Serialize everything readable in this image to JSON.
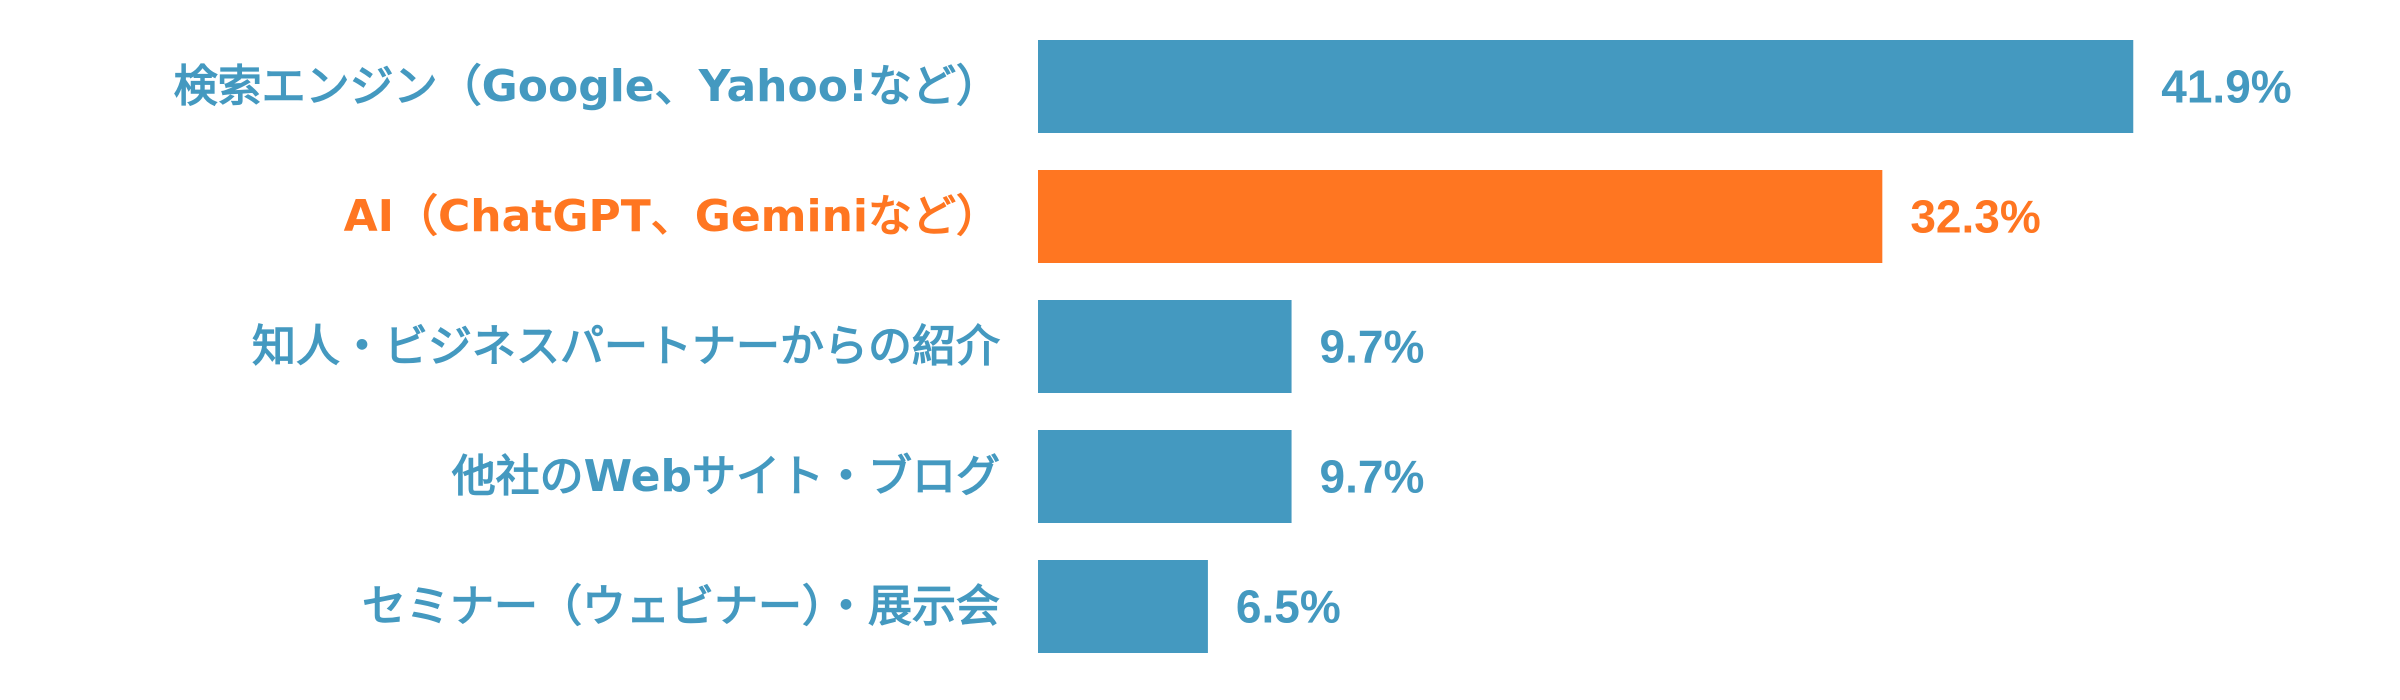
{
  "chart_data": {
    "type": "bar",
    "orientation": "horizontal",
    "categories": [
      "検索エンジン（Google、Yahoo!など）",
      "AI（ChatGPT、Geminiなど）",
      "知人・ビジネスパートナーからの紹介",
      "他社のWebサイト・ブログ",
      "セミナー（ウェビナー）・展示会"
    ],
    "values": [
      41.9,
      32.3,
      9.7,
      9.7,
      6.5
    ],
    "value_labels": [
      "41.9%",
      "32.3%",
      "9.7%",
      "9.7%",
      "6.5%"
    ],
    "unit": "%",
    "xlim": [
      0,
      50
    ],
    "grid": false,
    "legend": "none",
    "colors": {
      "default": "#4499C0",
      "highlight": "#FF7621"
    },
    "highlight_index": 1
  }
}
